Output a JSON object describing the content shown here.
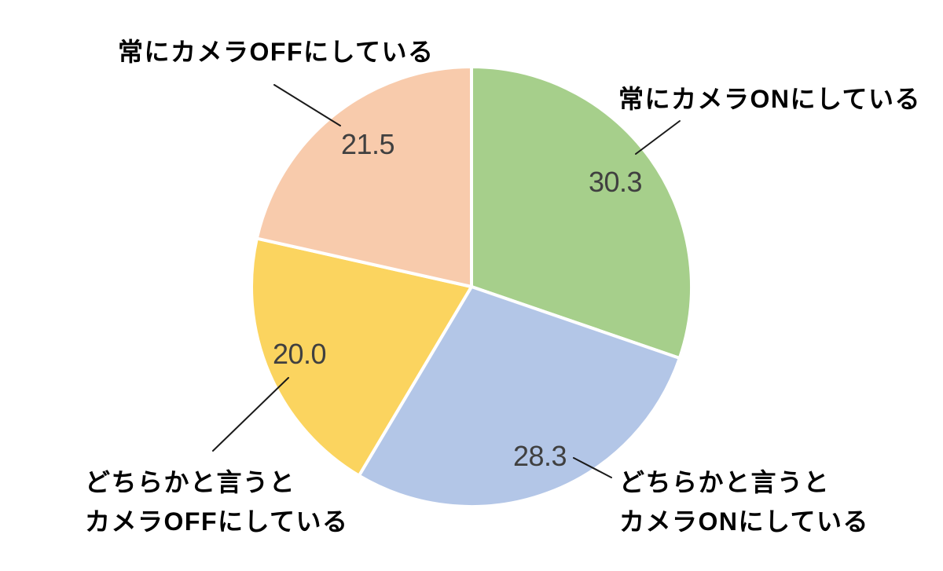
{
  "figure": {
    "background_color": "#FFFFFF"
  },
  "chart_data": {
    "type": "pie",
    "title": "",
    "categories": [
      "常にカメラONにしている",
      "どちらかと言うとカメラONにしている",
      "どちらかと言うとカメラOFFにしている",
      "常にカメラOFFにしている"
    ],
    "values": [
      30.3,
      28.3,
      20.0,
      21.5
    ],
    "display_values": [
      "30.3",
      "28.3",
      "20.0",
      "21.5"
    ],
    "colors": [
      "#A6CF8B",
      "#B3C6E7",
      "#FBD45F",
      "#F8CBAC"
    ],
    "slice_border_color": "#FFFFFF",
    "value_label_color": "#404040",
    "callout_text_color": "#000000",
    "leader_line_color": "#1A1A1A",
    "start_angle_deg": 0,
    "direction": "clockwise",
    "legend_position": "none",
    "callouts": {
      "top_right": {
        "lines": [
          "常にカメラONにしている"
        ]
      },
      "bottom_right": {
        "lines": [
          "どちらかと言うと",
          "カメラONにしている"
        ]
      },
      "bottom_left": {
        "lines": [
          "どちらかと言うと",
          "カメラOFFにしている"
        ]
      },
      "top_left": {
        "lines": [
          "常にカメラOFFにしている"
        ]
      }
    }
  }
}
